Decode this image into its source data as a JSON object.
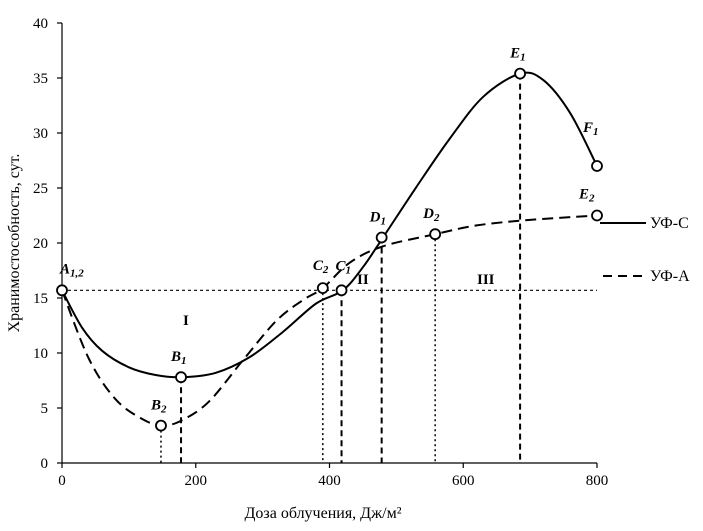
{
  "chart_data": {
    "type": "line",
    "xlabel": "Доза облучения, Дж/м²",
    "ylabel": "Хранимостособность, сут.",
    "xlim": [
      0,
      800
    ],
    "ylim": [
      0,
      40
    ],
    "x_ticks": [
      "0",
      "200",
      "400",
      "600",
      "800"
    ],
    "y_ticks": [
      "0",
      "5",
      "10",
      "15",
      "20",
      "25",
      "30",
      "35",
      "40"
    ],
    "grid": false,
    "legend_position": "right",
    "series": [
      {
        "name": "УФ-С",
        "line_style": "solid",
        "x": [
          0,
          30,
          60,
          100,
          140,
          180,
          230,
          280,
          330,
          380,
          420,
          450,
          480,
          530,
          580,
          630,
          685,
          720,
          760,
          800
        ],
        "y": [
          15.7,
          12.3,
          10.2,
          8.7,
          8.0,
          7.8,
          8.2,
          9.6,
          11.9,
          14.5,
          15.7,
          17.8,
          20.5,
          25.1,
          29.5,
          33.3,
          35.4,
          34.8,
          31.8,
          27.0
        ],
        "marked_points": [
          {
            "label": "A",
            "sub": "1,2",
            "x": 0,
            "y": 15.7
          },
          {
            "label": "B",
            "sub": "1",
            "x": 178,
            "y": 7.8
          },
          {
            "label": "C",
            "sub": "1",
            "x": 418,
            "y": 15.7
          },
          {
            "label": "D",
            "sub": "1",
            "x": 478,
            "y": 20.5
          },
          {
            "label": "E",
            "sub": "1",
            "x": 685,
            "y": 35.4
          },
          {
            "label": "F",
            "sub": "1",
            "x": 800,
            "y": 27.0
          }
        ]
      },
      {
        "name": "УФ-А",
        "line_style": "dashed",
        "x": [
          0,
          40,
          80,
          120,
          150,
          180,
          220,
          270,
          320,
          360,
          390,
          430,
          480,
          558,
          620,
          700,
          800
        ],
        "y": [
          15.7,
          9.5,
          5.8,
          4.0,
          3.4,
          3.9,
          5.6,
          9.3,
          12.9,
          14.8,
          15.9,
          18.2,
          19.7,
          20.8,
          21.6,
          22.1,
          22.5
        ],
        "marked_points": [
          {
            "label": "B",
            "sub": "2",
            "x": 148,
            "y": 3.4
          },
          {
            "label": "C",
            "sub": "2",
            "x": 390,
            "y": 15.9
          },
          {
            "label": "D",
            "sub": "2",
            "x": 558,
            "y": 20.8
          },
          {
            "label": "E",
            "sub": "2",
            "x": 800,
            "y": 22.5
          }
        ]
      }
    ],
    "threshold_y": 15.7,
    "regions": [
      "I",
      "II",
      "III"
    ],
    "drop_lines": [
      {
        "x": 148,
        "y": 3.4,
        "style": "dotted"
      },
      {
        "x": 178,
        "y": 7.8,
        "style": "dashed"
      },
      {
        "x": 390,
        "y": 15.9,
        "style": "dotted"
      },
      {
        "x": 418,
        "y": 15.7,
        "style": "dashed"
      },
      {
        "x": 478,
        "y": 20.5,
        "style": "dashed"
      },
      {
        "x": 558,
        "y": 20.8,
        "style": "dotted"
      },
      {
        "x": 685,
        "y": 35.4,
        "style": "dashed"
      }
    ]
  }
}
